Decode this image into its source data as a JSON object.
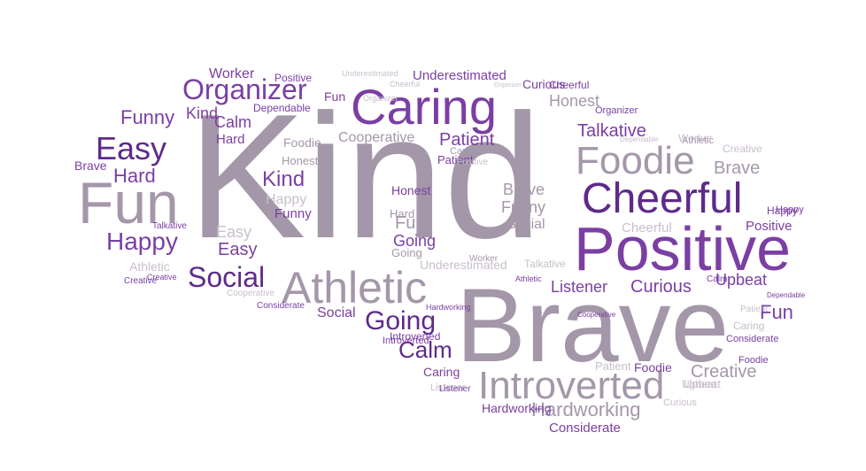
{
  "colors": {
    "dark_purple": "#5e2a8a",
    "purple": "#7b3fa3",
    "medium": "#9271ad",
    "gray": "#a497a9",
    "light": "#c8bfcb"
  },
  "words": [
    {
      "text": "Kind",
      "color": "gray"
    },
    {
      "text": "Brave",
      "color": "gray"
    },
    {
      "text": "Positive",
      "color": "purple"
    },
    {
      "text": "Caring",
      "color": "purple"
    },
    {
      "text": "Fun",
      "color": "gray"
    },
    {
      "text": "Cheerful",
      "color": "dark_purple"
    },
    {
      "text": "Athletic",
      "color": "gray"
    },
    {
      "text": "Introverted",
      "color": "gray"
    },
    {
      "text": "Foodie",
      "color": "gray"
    },
    {
      "text": "Easy",
      "color": "dark_purple"
    },
    {
      "text": "Organizer",
      "color": "purple"
    },
    {
      "text": "Social",
      "color": "dark_purple"
    },
    {
      "text": "Going",
      "color": "dark_purple"
    },
    {
      "text": "Happy",
      "color": "purple"
    },
    {
      "text": "Hardworking",
      "color": "gray"
    },
    {
      "text": "Calm",
      "color": "dark_purple"
    },
    {
      "text": "Hard",
      "color": "purple"
    },
    {
      "text": "Patient",
      "color": "purple"
    },
    {
      "text": "Funny",
      "color": "purple"
    },
    {
      "text": "Honest",
      "color": "gray"
    },
    {
      "text": "Talkative",
      "color": "purple"
    },
    {
      "text": "Curious",
      "color": "purple"
    },
    {
      "text": "Listener",
      "color": "purple"
    },
    {
      "text": "Upbeat",
      "color": "purple"
    },
    {
      "text": "Fun",
      "color": "purple"
    },
    {
      "text": "Creative",
      "color": "gray"
    },
    {
      "text": "Kind",
      "color": "purple"
    },
    {
      "text": "Calm",
      "color": "purple"
    },
    {
      "text": "Cooperative",
      "color": "gray"
    },
    {
      "text": "Underestimated",
      "color": "purple"
    },
    {
      "text": "Worker",
      "color": "purple"
    },
    {
      "text": "Brave",
      "color": "gray"
    },
    {
      "text": "Kind",
      "color": "purple"
    },
    {
      "text": "Fun",
      "color": "gray"
    },
    {
      "text": "Easy",
      "color": "purple"
    },
    {
      "text": "Easy",
      "color": "light"
    },
    {
      "text": "Happy",
      "color": "light"
    },
    {
      "text": "Funny",
      "color": "purple"
    },
    {
      "text": "Hard",
      "color": "purple"
    },
    {
      "text": "Brave",
      "color": "gray"
    },
    {
      "text": "Funny",
      "color": "gray"
    },
    {
      "text": "Social",
      "color": "gray"
    },
    {
      "text": "Social",
      "color": "purple"
    },
    {
      "text": "Considerate",
      "color": "purple"
    },
    {
      "text": "Foodie",
      "color": "purple"
    },
    {
      "text": "Caring",
      "color": "purple"
    },
    {
      "text": "Introverted",
      "color": "purple"
    },
    {
      "text": "Honest",
      "color": "purple"
    },
    {
      "text": "Foodie",
      "color": "gray"
    },
    {
      "text": "Honest",
      "color": "gray"
    },
    {
      "text": "Cheerful",
      "color": "light"
    },
    {
      "text": "Positive",
      "color": "purple"
    },
    {
      "text": "Happy",
      "color": "purple"
    },
    {
      "text": "Going",
      "color": "gray"
    },
    {
      "text": "Going",
      "color": "purple"
    },
    {
      "text": "Hard",
      "color": "gray"
    },
    {
      "text": "Athletic",
      "color": "light"
    },
    {
      "text": "Worker",
      "color": "gray"
    },
    {
      "text": "Positive",
      "color": "purple"
    },
    {
      "text": "Dependable",
      "color": "purple"
    },
    {
      "text": "Cheerful",
      "color": "purple"
    },
    {
      "text": "Curious",
      "color": "purple"
    },
    {
      "text": "Organizer",
      "color": "purple"
    },
    {
      "text": "Patient",
      "color": "purple"
    },
    {
      "text": "Caring",
      "color": "gray"
    },
    {
      "text": "Considerate",
      "color": "purple"
    },
    {
      "text": "Foodie",
      "color": "purple"
    },
    {
      "text": "Creative",
      "color": "light"
    },
    {
      "text": "Upbeat",
      "color": "light"
    },
    {
      "text": "Listener",
      "color": "light"
    },
    {
      "text": "Hardworking",
      "color": "purple"
    },
    {
      "text": "Patient",
      "color": "light"
    },
    {
      "text": "Talkative",
      "color": "light"
    },
    {
      "text": "Underestimated",
      "color": "light"
    },
    {
      "text": "Organizer",
      "color": "light"
    },
    {
      "text": "Cheerful",
      "color": "light"
    },
    {
      "text": "Dependable",
      "color": "purple"
    },
    {
      "text": "Dependable",
      "color": "light"
    },
    {
      "text": "Worker",
      "color": "light"
    },
    {
      "text": "Positive",
      "color": "light"
    },
    {
      "text": "Creative",
      "color": "purple"
    },
    {
      "text": "Calm",
      "color": "purple"
    },
    {
      "text": "Athletic",
      "color": "purple"
    },
    {
      "text": "Cooperative",
      "color": "purple"
    },
    {
      "text": "Hardworking",
      "color": "purple"
    },
    {
      "text": "Introverted",
      "color": "purple"
    },
    {
      "text": "Underestimated",
      "color": "light"
    },
    {
      "text": "Organizer",
      "color": "light"
    },
    {
      "text": "Athletic",
      "color": "gray"
    },
    {
      "text": "Happy",
      "color": "purple"
    },
    {
      "text": "Brave",
      "color": "purple"
    },
    {
      "text": "Talkative",
      "color": "purple"
    },
    {
      "text": "Cooperative",
      "color": "light"
    },
    {
      "text": "Considerate",
      "color": "purple"
    },
    {
      "text": "Curious",
      "color": "light"
    },
    {
      "text": "Listener",
      "color": "purple"
    },
    {
      "text": "Patient",
      "color": "light"
    },
    {
      "text": "Upbeat",
      "color": "light"
    },
    {
      "text": "Caring",
      "color": "light"
    },
    {
      "text": "Creative",
      "color": "purple"
    },
    {
      "text": "Fun",
      "color": "purple"
    }
  ]
}
